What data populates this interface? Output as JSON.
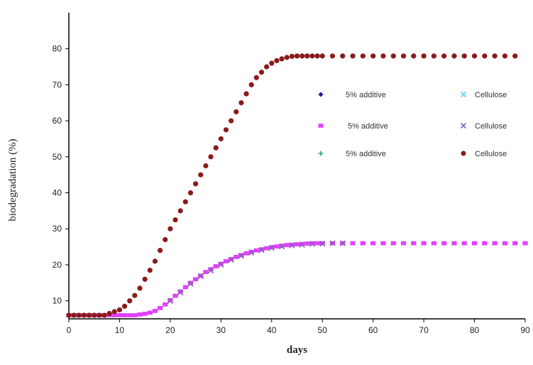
{
  "chart_data": {
    "type": "scatter",
    "xlabel": "days",
    "ylabel": "biodegradation (%)",
    "xlim": [
      0,
      90
    ],
    "ylim": [
      5,
      90
    ],
    "xticks": [
      0,
      10,
      20,
      30,
      40,
      50,
      60,
      70,
      80,
      90
    ],
    "yticks": [
      10,
      20,
      30,
      40,
      50,
      60,
      70,
      80
    ],
    "grid": false,
    "colors": {
      "cellulose": "#8b1a1a",
      "additive_magenta": "#e040ff",
      "additive_purple": "#9a5ad0",
      "axis": "#000000"
    },
    "legend": [
      {
        "label": "5% additive",
        "marker": "diamond",
        "color": "#1a1aa0"
      },
      {
        "label": "Cellulose",
        "marker": "x",
        "color": "#55d8e8"
      },
      {
        "label": "5% additive",
        "marker": "square",
        "color": "#e040ff"
      },
      {
        "label": "Cellulose",
        "marker": "x",
        "color": "#8a5fb5"
      },
      {
        "label": "5% additive",
        "marker": "plus",
        "color": "#2a9d7a"
      },
      {
        "label": "Cellulose",
        "marker": "circle",
        "color": "#8b1a1a"
      }
    ],
    "series": [
      {
        "x": [
          0,
          1,
          2,
          3,
          4,
          5,
          6,
          7,
          8,
          9,
          10,
          11,
          12,
          13,
          14,
          15,
          16,
          17,
          18,
          19,
          20,
          21,
          22,
          23,
          24,
          25,
          26,
          27,
          28,
          29,
          30,
          31,
          32,
          33,
          34,
          35,
          36,
          37,
          38,
          39,
          40,
          41,
          42,
          43,
          44,
          45,
          46,
          47,
          48,
          49,
          50,
          52,
          54,
          56,
          58,
          60,
          62,
          64,
          66,
          68,
          70,
          72,
          74,
          76,
          78,
          80,
          82,
          84,
          86,
          88
        ],
        "values": [
          6,
          6,
          6,
          6,
          6,
          6,
          6,
          6,
          6.5,
          7,
          7.5,
          8.5,
          10,
          11.5,
          13.5,
          16,
          18.5,
          21,
          24,
          27,
          30,
          32.5,
          35,
          37.5,
          40,
          42.5,
          45,
          47.5,
          50,
          52.5,
          55,
          57.5,
          60,
          62.5,
          65,
          67.5,
          70,
          72,
          73.5,
          75,
          76,
          76.7,
          77.2,
          77.6,
          77.9,
          78,
          78,
          78,
          78,
          78,
          78,
          78,
          78,
          78,
          78,
          78,
          78,
          78,
          78,
          78,
          78,
          78,
          78,
          78,
          78,
          78,
          78,
          78,
          78,
          78
        ],
        "marker": "circle",
        "color": "#8b1a1a"
      },
      {
        "x": [
          0,
          1,
          2,
          3,
          4,
          5,
          6,
          7,
          8,
          9,
          10,
          11,
          12,
          13,
          14,
          15,
          16,
          17,
          18,
          19,
          20,
          21,
          22,
          23,
          24,
          25,
          26,
          27,
          28,
          29,
          30,
          31,
          32,
          33,
          34,
          35,
          36,
          37,
          38,
          39,
          40,
          41,
          42,
          43,
          44,
          45,
          46,
          47,
          48,
          49,
          50,
          52,
          54,
          56,
          58,
          60,
          62,
          64,
          66,
          68,
          70,
          72,
          74,
          76,
          78,
          80,
          82,
          84,
          86,
          88,
          90
        ],
        "values": [
          6,
          6,
          6,
          6,
          6,
          6,
          6,
          6,
          6,
          6,
          6,
          6,
          6,
          6,
          6.2,
          6.4,
          6.7,
          7.2,
          8,
          9,
          10.2,
          11.4,
          12.6,
          13.8,
          15,
          16,
          17,
          18,
          18.8,
          19.6,
          20.3,
          21,
          21.6,
          22.2,
          22.7,
          23.2,
          23.6,
          24,
          24.3,
          24.6,
          24.9,
          25.1,
          25.3,
          25.5,
          25.6,
          25.7,
          25.8,
          25.9,
          26,
          26,
          26,
          26,
          26,
          26,
          26,
          26,
          26,
          26,
          26,
          26,
          26,
          26,
          26,
          26,
          26,
          26,
          26,
          26,
          26,
          26,
          26
        ],
        "marker": "square",
        "color": "#e040ff"
      },
      {
        "x": [
          20,
          22,
          24,
          26,
          28,
          30,
          32,
          34,
          36,
          38,
          40,
          42,
          44,
          46,
          48,
          50,
          52,
          54
        ],
        "values": [
          10,
          12.3,
          14.7,
          16.8,
          18.4,
          20,
          21.4,
          22.5,
          23.4,
          24.1,
          24.7,
          25.1,
          25.4,
          25.6,
          25.8,
          25.9,
          26,
          26
        ],
        "marker": "x",
        "color": "#8a5fb5"
      }
    ]
  }
}
